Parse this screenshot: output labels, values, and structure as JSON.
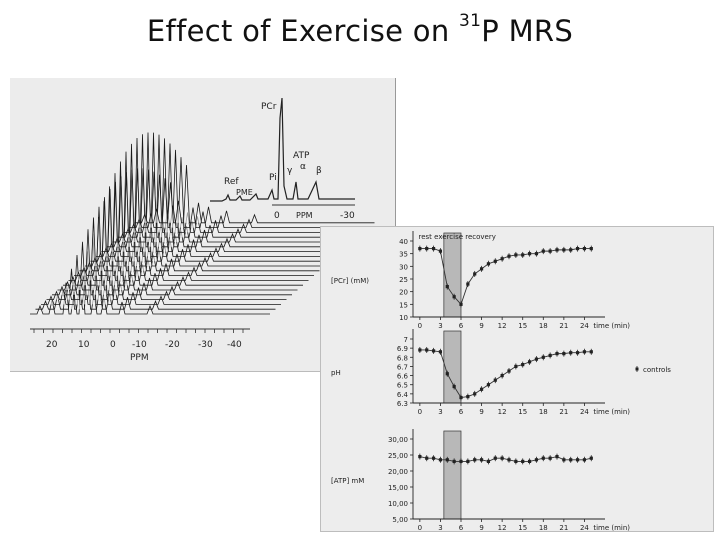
{
  "slide": {
    "title_main": "Effect of Exercise on ",
    "title_superscript": "31",
    "title_end": "P MRS"
  },
  "nmr": {
    "peaks": {
      "pcr": "PCr",
      "atp": "ATP",
      "gamma": "γ",
      "alpha": "α",
      "beta": "β",
      "pi": "Pi",
      "pme": "PME",
      "ref": "Ref"
    },
    "top_axis": {
      "ticks": [
        "0",
        "-30"
      ],
      "label": "PPM"
    },
    "bottom_axis": {
      "ticks": [
        "20",
        "10",
        "0",
        "-10",
        "-20",
        "-30",
        "-40"
      ],
      "label": "PPM"
    }
  },
  "chart_data": [
    {
      "type": "line",
      "panel": "top",
      "header": "rest exercise recovery",
      "ylabel": "[PCr] (mM)",
      "xlabel": "time (min)",
      "xlim": [
        -1,
        27
      ],
      "ylim": [
        10,
        40
      ],
      "yticks": [
        "40",
        "35",
        "30",
        "25",
        "20",
        "15",
        "10"
      ],
      "xticks": [
        "0",
        "3",
        "6",
        "9",
        "12",
        "15",
        "18",
        "21",
        "24"
      ],
      "exercise_window": [
        3.5,
        6
      ],
      "series": [
        {
          "name": "PCr",
          "x": [
            0,
            1,
            2,
            3,
            4,
            5,
            6,
            7,
            8,
            9,
            10,
            11,
            12,
            13,
            14,
            15,
            16,
            17,
            18,
            19,
            20,
            21,
            22,
            23,
            24,
            25
          ],
          "values": [
            37,
            37,
            37,
            36,
            22,
            18,
            15,
            23,
            27,
            29,
            31,
            32,
            33,
            34,
            34.5,
            34.5,
            35,
            35,
            36,
            36,
            36.5,
            36.5,
            36.5,
            37,
            37,
            37
          ]
        }
      ]
    },
    {
      "type": "line",
      "panel": "middle",
      "ylabel": "pH",
      "xlabel": "time (min)",
      "xlim": [
        -1,
        27
      ],
      "ylim": [
        6.3,
        7.0
      ],
      "yticks": [
        "7",
        "6.9",
        "6.8",
        "6.7",
        "6.6",
        "6.5",
        "6.4",
        "6.3"
      ],
      "xticks": [
        "0",
        "3",
        "6",
        "9",
        "12",
        "15",
        "18",
        "21",
        "24"
      ],
      "exercise_window": [
        3.5,
        6
      ],
      "legend": "controls",
      "series": [
        {
          "name": "controls",
          "x": [
            0,
            1,
            2,
            3,
            4,
            5,
            6,
            7,
            8,
            9,
            10,
            11,
            12,
            13,
            14,
            15,
            16,
            17,
            18,
            19,
            20,
            21,
            22,
            23,
            24,
            25
          ],
          "values": [
            6.88,
            6.88,
            6.87,
            6.86,
            6.62,
            6.48,
            6.36,
            6.37,
            6.4,
            6.45,
            6.5,
            6.55,
            6.6,
            6.65,
            6.7,
            6.72,
            6.75,
            6.78,
            6.8,
            6.82,
            6.84,
            6.84,
            6.85,
            6.85,
            6.86,
            6.86
          ]
        }
      ]
    },
    {
      "type": "line",
      "panel": "bottom",
      "ylabel": "[ATP] mM",
      "xlabel": "time (min)",
      "xlim": [
        -1,
        27
      ],
      "ylim": [
        5,
        30
      ],
      "yticks": [
        "30,00",
        "25,00",
        "20,00",
        "15,00",
        "10,00",
        "5,00"
      ],
      "xticks": [
        "0",
        "3",
        "6",
        "9",
        "12",
        "15",
        "18",
        "21",
        "24"
      ],
      "exercise_window": [
        3.5,
        6
      ],
      "series": [
        {
          "name": "ATP",
          "x": [
            0,
            1,
            2,
            3,
            4,
            5,
            6,
            7,
            8,
            9,
            10,
            11,
            12,
            13,
            14,
            15,
            16,
            17,
            18,
            19,
            20,
            21,
            22,
            23,
            24,
            25
          ],
          "values": [
            24.5,
            24,
            24,
            23.5,
            23.5,
            23,
            23,
            23,
            23.5,
            23.5,
            23,
            24,
            24,
            23.5,
            23,
            23,
            23,
            23.5,
            24,
            24,
            24.5,
            23.5,
            23.5,
            23.5,
            23.5,
            24
          ]
        }
      ]
    }
  ]
}
